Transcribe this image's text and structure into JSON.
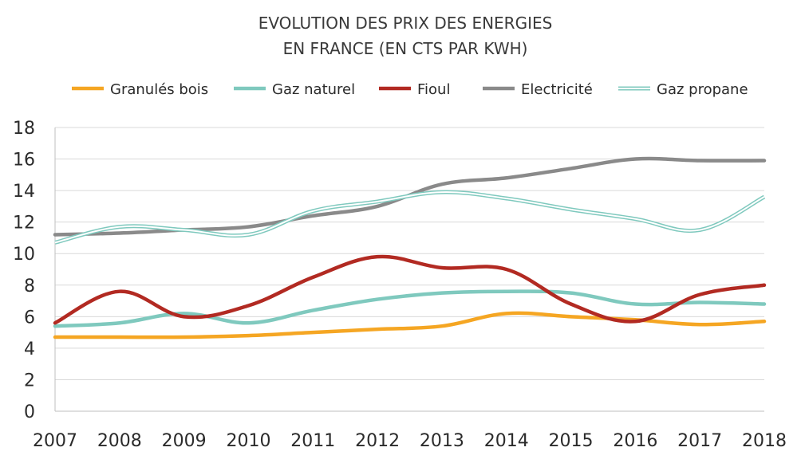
{
  "chart_data": {
    "type": "line",
    "title": [
      "EVOLUTION DES PRIX DES ENERGIES",
      "EN FRANCE (EN CTS PAR KWH)"
    ],
    "xlabel": "",
    "ylabel": "",
    "x": [
      "2007",
      "2008",
      "2009",
      "2010",
      "2011",
      "2012",
      "2013",
      "2014",
      "2015",
      "2016",
      "2017",
      "2018"
    ],
    "ylim": [
      0,
      18
    ],
    "yticks": [
      "0",
      "2",
      "4",
      "6",
      "8",
      "10",
      "12",
      "14",
      "16",
      "18"
    ],
    "grid": "horizontal",
    "legend_position": "top",
    "series": [
      {
        "name": "Granulés bois",
        "color": "#F5A623",
        "style": "solid",
        "values": [
          4.7,
          4.7,
          4.7,
          4.8,
          5.0,
          5.2,
          5.4,
          6.2,
          6.0,
          5.8,
          5.5,
          5.7
        ]
      },
      {
        "name": "Gaz naturel",
        "color": "#7FC9BE",
        "style": "solid",
        "values": [
          5.4,
          5.6,
          6.2,
          5.6,
          6.4,
          7.1,
          7.5,
          7.6,
          7.5,
          6.8,
          6.9,
          6.8
        ]
      },
      {
        "name": "Fioul",
        "color": "#B22A22",
        "style": "solid",
        "values": [
          5.6,
          7.6,
          6.0,
          6.7,
          8.5,
          9.8,
          9.1,
          9.0,
          6.8,
          5.7,
          7.4,
          8.0
        ]
      },
      {
        "name": "Electricité",
        "color": "#8A8A8A",
        "style": "solid",
        "values": [
          11.2,
          11.3,
          11.5,
          11.7,
          12.4,
          13.0,
          14.4,
          14.8,
          15.4,
          16.0,
          15.9,
          15.9
        ]
      },
      {
        "name": "Gaz propane",
        "color": "#7FC9BE",
        "style": "double",
        "values": [
          10.7,
          11.7,
          11.5,
          11.2,
          12.7,
          13.3,
          13.9,
          13.5,
          12.8,
          12.2,
          11.5,
          13.6
        ]
      }
    ]
  }
}
